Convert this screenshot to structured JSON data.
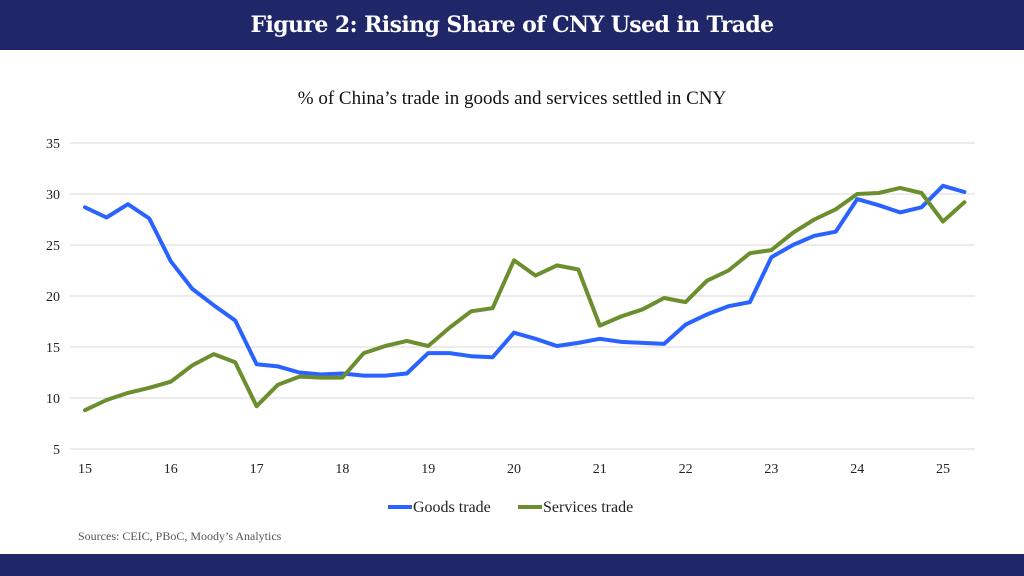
{
  "header": {
    "title": "Figure 2: Rising Share of CNY Used in Trade"
  },
  "footer": {
    "sources": "Sources: CEIC, PBoC, Moody’s Analytics"
  },
  "colors": {
    "header_bg": "#1f2769",
    "goods": "#2962ff",
    "services": "#6b8e2f",
    "grid": "#d9d9d9"
  },
  "chart_data": {
    "type": "line",
    "title": "% of China’s trade in goods and services settled in CNY",
    "xlabel": "",
    "ylabel": "",
    "ylim": [
      5,
      35
    ],
    "yticks": [
      5,
      10,
      15,
      20,
      25,
      30,
      35
    ],
    "xticks": [
      "15",
      "16",
      "17",
      "18",
      "19",
      "20",
      "21",
      "22",
      "23",
      "24",
      "25"
    ],
    "x_start": 15,
    "x_step": 0.25,
    "grid": true,
    "legend_position": "bottom",
    "series": [
      {
        "name": "Goods trade",
        "color": "#2962ff",
        "values": [
          28.7,
          27.7,
          29.0,
          27.6,
          23.4,
          20.7,
          19.1,
          17.6,
          13.3,
          13.1,
          12.5,
          12.3,
          12.4,
          12.2,
          12.2,
          12.4,
          14.4,
          14.4,
          14.1,
          14.0,
          16.4,
          15.8,
          15.1,
          15.4,
          15.8,
          15.5,
          15.4,
          15.3,
          17.2,
          18.2,
          19.0,
          19.4,
          23.8,
          25.0,
          25.9,
          26.3,
          29.5,
          28.9,
          28.2,
          28.7,
          30.8,
          30.2
        ]
      },
      {
        "name": "Services trade",
        "color": "#6b8e2f",
        "values": [
          8.8,
          9.8,
          10.5,
          11.0,
          11.6,
          13.2,
          14.3,
          13.5,
          9.2,
          11.3,
          12.1,
          12.0,
          12.0,
          14.4,
          15.1,
          15.6,
          15.1,
          16.9,
          18.5,
          18.8,
          23.5,
          22.0,
          23.0,
          22.6,
          17.1,
          18.0,
          18.7,
          19.8,
          19.4,
          21.5,
          22.5,
          24.2,
          24.5,
          26.2,
          27.5,
          28.5,
          30.0,
          30.1,
          30.6,
          30.1,
          27.3,
          29.2
        ]
      }
    ]
  }
}
